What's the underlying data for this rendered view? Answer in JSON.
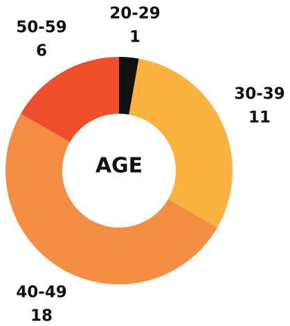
{
  "chart_data": {
    "type": "pie",
    "title": "AGE",
    "categories": [
      "20-29",
      "30-39",
      "40-49",
      "50-59"
    ],
    "values": [
      1,
      11,
      18,
      6
    ],
    "colors": [
      "#111111",
      "#fcb23e",
      "#f58e45",
      "#ef4f2b"
    ],
    "donut": true
  }
}
